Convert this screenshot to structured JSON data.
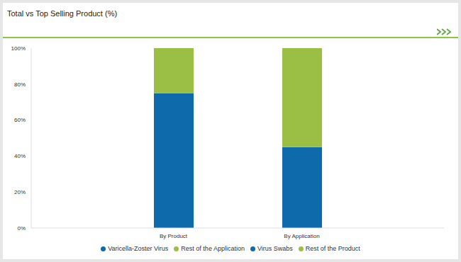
{
  "chart_data": {
    "type": "bar",
    "title": "Total vs Top Selling Product (%)",
    "stacked": true,
    "grid": false,
    "legend": "bottom",
    "categories": [
      "By Product",
      "By Application"
    ],
    "series": [
      {
        "name": "Varicella-Zoster Virus",
        "color": "#0f6aab",
        "values": [
          null,
          45
        ]
      },
      {
        "name": "Rest of the Application",
        "color": "#9bbf45",
        "values": [
          null,
          55
        ]
      },
      {
        "name": "Virus Swabs",
        "color": "#0f6aab",
        "values": [
          75,
          null
        ]
      },
      {
        "name": "Rest of the Product",
        "color": "#9bbf45",
        "values": [
          25,
          null
        ]
      }
    ],
    "ylim": [
      0,
      100
    ],
    "yticks": [
      {
        "value": 0,
        "label": "0%"
      },
      {
        "value": 20,
        "label": "20%"
      },
      {
        "value": 40,
        "label": "40%"
      },
      {
        "value": 60,
        "label": "60%"
      },
      {
        "value": 80,
        "label": "80%"
      },
      {
        "value": 100,
        "label": "100%"
      }
    ]
  }
}
